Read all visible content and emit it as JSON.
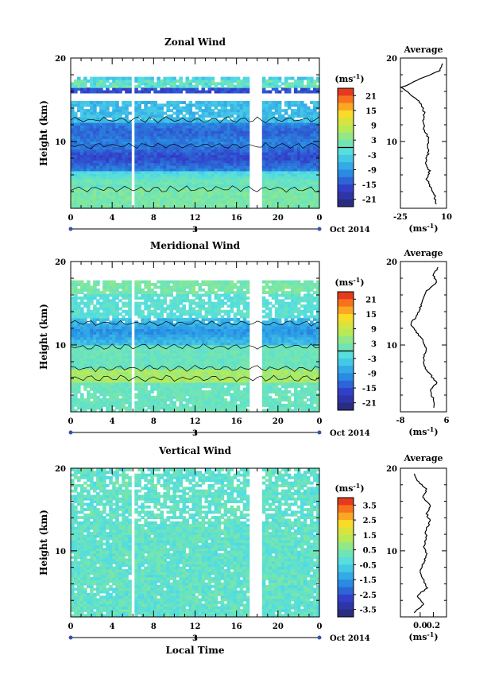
{
  "chart_data": [
    {
      "type": "heatmap",
      "title": "Zonal Wind",
      "ylabel": "Height (km)",
      "ylim": [
        2,
        20
      ],
      "y_ticks": [
        "10",
        "20"
      ],
      "xlim": [
        0,
        24
      ],
      "x_ticks": [
        "0",
        "4",
        "8",
        "12",
        "16",
        "20",
        "0"
      ],
      "date_label": "3",
      "month_label": "Oct 2014",
      "colorbar": {
        "unit": "(ms",
        "unit_sup": "-1",
        "unit_close": ")",
        "ticks": [
          "21",
          "15",
          "9",
          "3",
          "-3",
          "-9",
          "-15",
          "-21"
        ],
        "range": [
          -24,
          24
        ]
      },
      "average": {
        "title": "Average",
        "xlim": [
          -25,
          10
        ],
        "x_ticks": [
          "-25",
          "10"
        ],
        "xlabel": "(ms",
        "xlabel_sup": "-1",
        "xlabel_close": ")",
        "y_ticks": [
          "10",
          "20"
        ],
        "profile": [
          [
            2.5,
            2
          ],
          [
            3.5,
            1
          ],
          [
            4.5,
            -2
          ],
          [
            5.5,
            -5
          ],
          [
            6.5,
            -3
          ],
          [
            7.5,
            -6
          ],
          [
            8.5,
            -4
          ],
          [
            9.5,
            -4
          ],
          [
            10.5,
            -4
          ],
          [
            11.5,
            -7
          ],
          [
            12.5,
            -8
          ],
          [
            13.5,
            -7
          ],
          [
            14.5,
            -9
          ],
          [
            15.5,
            -16
          ],
          [
            16.5,
            -24
          ],
          [
            17.5,
            -10
          ],
          [
            18.5,
            5
          ],
          [
            19.5,
            8
          ]
        ]
      }
    },
    {
      "type": "heatmap",
      "title": "Meridional Wind",
      "ylabel": "Height (km)",
      "ylim": [
        2,
        20
      ],
      "y_ticks": [
        "10",
        "20"
      ],
      "xlim": [
        0,
        24
      ],
      "x_ticks": [
        "0",
        "4",
        "8",
        "12",
        "16",
        "20",
        "0"
      ],
      "date_label": "3",
      "month_label": "Oct 2014",
      "colorbar": {
        "unit": "(ms",
        "unit_sup": "-1",
        "unit_close": ")",
        "ticks": [
          "21",
          "15",
          "9",
          "3",
          "-3",
          "-9",
          "-15",
          "-21"
        ],
        "range": [
          -24,
          24
        ]
      },
      "average": {
        "title": "Average",
        "xlim": [
          -8,
          6
        ],
        "x_ticks": [
          "-8",
          "6"
        ],
        "xlabel": "(ms",
        "xlabel_sup": "-1",
        "xlabel_close": ")",
        "y_ticks": [
          "10",
          "20"
        ],
        "profile": [
          [
            2.5,
            2
          ],
          [
            3.5,
            2
          ],
          [
            4.5,
            1
          ],
          [
            5.5,
            3
          ],
          [
            6.5,
            1
          ],
          [
            7.5,
            -1
          ],
          [
            8.5,
            -1
          ],
          [
            9.5,
            0
          ],
          [
            10.5,
            -1
          ],
          [
            11.5,
            -3
          ],
          [
            12.5,
            -5
          ],
          [
            13.5,
            -3
          ],
          [
            14.5,
            -2
          ],
          [
            15.5,
            -1
          ],
          [
            16.5,
            0
          ],
          [
            17.5,
            3
          ],
          [
            18.5,
            2
          ],
          [
            19.5,
            4
          ]
        ]
      }
    },
    {
      "type": "heatmap",
      "title": "Vertical Wind",
      "ylabel": "Height (km)",
      "xlabel": "Local Time",
      "ylim": [
        2,
        20
      ],
      "y_ticks": [
        "10",
        "20"
      ],
      "xlim": [
        0,
        24
      ],
      "x_ticks": [
        "0",
        "4",
        "8",
        "12",
        "16",
        "20",
        "0"
      ],
      "date_label": "3",
      "month_label": "Oct 2014",
      "colorbar": {
        "unit": "(ms",
        "unit_sup": "-1",
        "unit_close": ")",
        "ticks": [
          "3.5",
          "2.5",
          "1.5",
          "0.5",
          "-0.5",
          "-1.5",
          "-2.5",
          "-3.5"
        ],
        "range": [
          -4,
          4
        ]
      },
      "average": {
        "title": "Average",
        "xlim": [
          -0.3,
          0.4
        ],
        "x_ticks": [
          "0.0",
          "0.2"
        ],
        "xlabel": "(ms",
        "xlabel_sup": "-1",
        "xlabel_close": ")",
        "y_ticks": [
          "10",
          "20"
        ],
        "profile": [
          [
            2.5,
            -0.1
          ],
          [
            3.5,
            0.05
          ],
          [
            4.5,
            -0.05
          ],
          [
            5.5,
            0.1
          ],
          [
            6.5,
            0.05
          ],
          [
            7.5,
            0.0
          ],
          [
            8.5,
            0.05
          ],
          [
            9.5,
            0.1
          ],
          [
            10.5,
            0.05
          ],
          [
            11.5,
            0.1
          ],
          [
            12.5,
            0.08
          ],
          [
            13.5,
            0.15
          ],
          [
            14.5,
            0.1
          ],
          [
            15.5,
            0.15
          ],
          [
            16.5,
            0.05
          ],
          [
            17.5,
            0.1
          ],
          [
            18.5,
            -0.05
          ],
          [
            19.5,
            -0.1
          ]
        ]
      }
    }
  ]
}
